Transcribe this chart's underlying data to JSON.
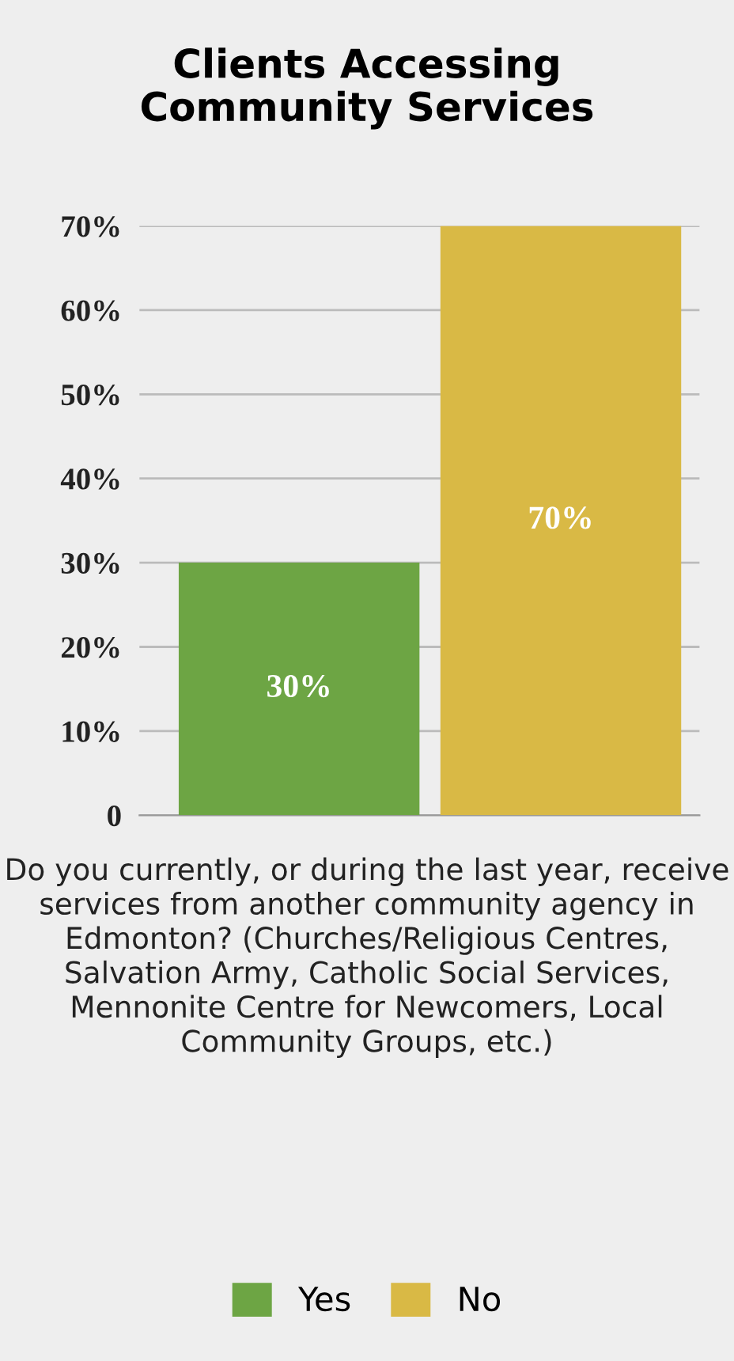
{
  "chart_data": {
    "type": "bar",
    "title": "Clients Accessing\nCommunity Services",
    "xlabel": "Do you currently, or during the last year, receive services from another community agency in Edmonton? (Churches/Religious Centres, Salvation Army, Catholic Social Services, Mennonite Centre for Newcomers, Local Community Groups, etc.)",
    "categories": [
      null,
      null
    ],
    "series": [
      {
        "name": "Yes",
        "color": "#6da544",
        "values": [
          30,
          null
        ]
      },
      {
        "name": "No",
        "color": "#d9b945",
        "values": [
          null,
          70
        ]
      }
    ],
    "value_labels": [
      [
        "30%",
        null
      ],
      [
        null,
        "70%"
      ]
    ],
    "ylim": [
      0,
      70
    ],
    "yticks": [
      0,
      {
        "value": 10,
        "label": "10%"
      },
      {
        "value": 20,
        "label": "20%"
      },
      {
        "value": 30,
        "label": "30%"
      },
      {
        "value": 40,
        "label": "40%"
      },
      {
        "value": 50,
        "label": "50%"
      },
      {
        "value": 60,
        "label": "60%"
      },
      {
        "value": 70,
        "label": "70%"
      }
    ],
    "grid": "y",
    "legend": "bottom"
  }
}
